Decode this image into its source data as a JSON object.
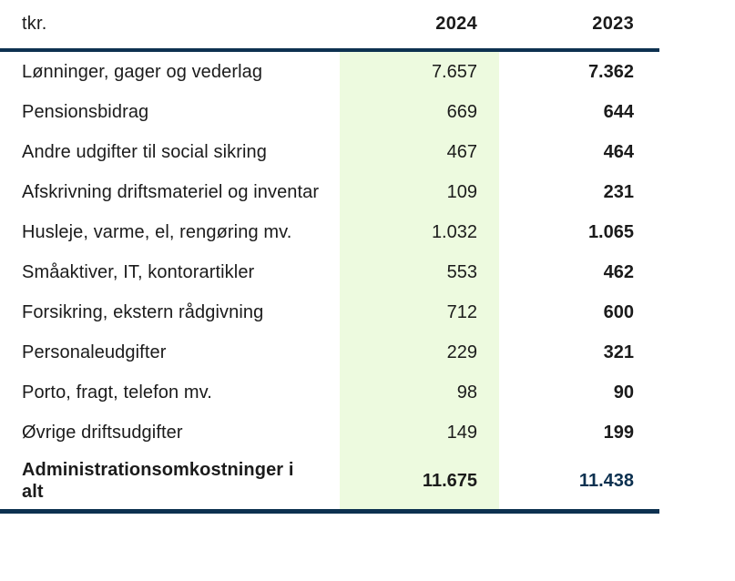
{
  "colors": {
    "navy_rule": "#0d3150",
    "highlight_green": "#edfadf",
    "text": "#1b1b1b",
    "total_2023_value": "#0d3150"
  },
  "table": {
    "header": {
      "unit": "tkr.",
      "col_2024": "2024",
      "col_2023": "2023"
    },
    "rows": [
      {
        "label": "Lønninger, gager og vederlag",
        "value_2024": "7.657",
        "value_2023": "7.362"
      },
      {
        "label": "Pensionsbidrag",
        "value_2024": "669",
        "value_2023": "644"
      },
      {
        "label": "Andre udgifter til social sikring",
        "value_2024": "467",
        "value_2023": "464"
      },
      {
        "label": "Afskrivning driftsmateriel og inventar",
        "value_2024": "109",
        "value_2023": "231"
      },
      {
        "label": "Husleje, varme, el, rengøring mv.",
        "value_2024": "1.032",
        "value_2023": "1.065"
      },
      {
        "label": "Småaktiver, IT, kontorartikler",
        "value_2024": "553",
        "value_2023": "462"
      },
      {
        "label": "Forsikring, ekstern rådgivning",
        "value_2024": "712",
        "value_2023": "600"
      },
      {
        "label": "Personaleudgifter",
        "value_2024": "229",
        "value_2023": "321"
      },
      {
        "label": "Porto, fragt, telefon mv.",
        "value_2024": "98",
        "value_2023": "90"
      },
      {
        "label": "Øvrige driftsudgifter",
        "value_2024": "149",
        "value_2023": "199"
      }
    ],
    "total": {
      "label": "Administrationsomkostninger i alt",
      "value_2024": "11.675",
      "value_2023": "11.438"
    }
  }
}
